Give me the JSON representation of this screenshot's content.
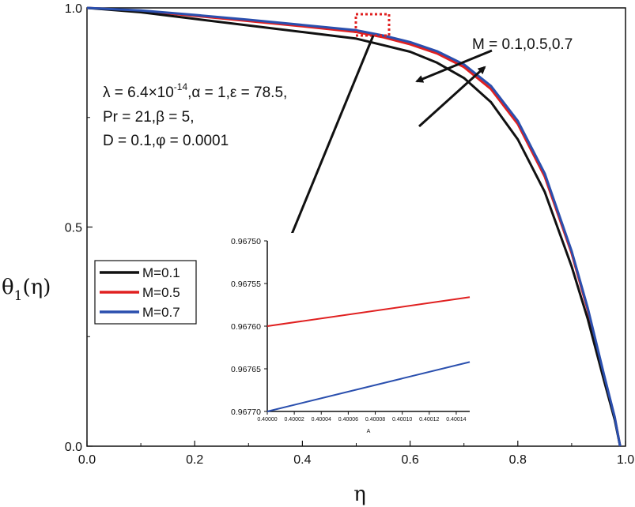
{
  "chart_data": {
    "type": "line",
    "title": "",
    "xlabel": "η",
    "ylabel": "θ",
    "ylabel_sub": "1",
    "ylabel_arg": "(η)",
    "xlim": [
      0.0,
      1.0
    ],
    "ylim": [
      0.0,
      1.0
    ],
    "xticks": [
      "0.0",
      "0.2",
      "0.4",
      "0.6",
      "0.8",
      "1.0"
    ],
    "yticks": [
      "0.0",
      "0.5",
      "1.0"
    ],
    "series": [
      {
        "name": "M=0.1",
        "color": "#111111",
        "x": [
          0,
          0.1,
          0.2,
          0.3,
          0.4,
          0.5,
          0.55,
          0.6,
          0.65,
          0.7,
          0.75,
          0.8,
          0.85,
          0.9,
          0.93,
          0.96,
          0.98,
          0.99
        ],
        "y": [
          1.0,
          0.99,
          0.975,
          0.96,
          0.945,
          0.93,
          0.915,
          0.9,
          0.875,
          0.84,
          0.785,
          0.7,
          0.58,
          0.41,
          0.29,
          0.15,
          0.06,
          0.0
        ]
      },
      {
        "name": "M=0.5",
        "color": "#e02020",
        "x": [
          0,
          0.1,
          0.2,
          0.3,
          0.4,
          0.5,
          0.55,
          0.6,
          0.65,
          0.7,
          0.75,
          0.8,
          0.85,
          0.9,
          0.93,
          0.96,
          0.98,
          0.99
        ],
        "y": [
          1.0,
          0.993,
          0.982,
          0.97,
          0.958,
          0.945,
          0.933,
          0.917,
          0.896,
          0.865,
          0.815,
          0.735,
          0.615,
          0.44,
          0.31,
          0.16,
          0.065,
          0.0
        ]
      },
      {
        "name": "M=0.7",
        "color": "#2a4fae",
        "x": [
          0,
          0.1,
          0.2,
          0.3,
          0.4,
          0.5,
          0.55,
          0.6,
          0.65,
          0.7,
          0.75,
          0.8,
          0.85,
          0.9,
          0.93,
          0.96,
          0.98,
          0.99
        ],
        "y": [
          1.0,
          0.994,
          0.984,
          0.973,
          0.961,
          0.949,
          0.937,
          0.922,
          0.901,
          0.871,
          0.822,
          0.742,
          0.622,
          0.445,
          0.315,
          0.163,
          0.066,
          0.0
        ]
      }
    ],
    "annotations": {
      "params_line1": "λ = 6.4×10",
      "params_line1_exp": "-14",
      "params_line1_rest": ",α = 1,ε = 78.5,",
      "params_line2": "Pr = 21,β = 5,",
      "params_line3": "D = 0.1,φ = 0.0001",
      "m_label": "M = 0.1,0.5,0.7"
    },
    "legend": {
      "position": "left-middle",
      "entries": [
        {
          "label": "M=0.1",
          "color": "#111111"
        },
        {
          "label": "M=0.5",
          "color": "#e02020"
        },
        {
          "label": "M=0.7",
          "color": "#2a4fae"
        }
      ]
    },
    "inset": {
      "xlim": [
        0.4,
        0.40015
      ],
      "ylim": [
        0.9675,
        0.9677
      ],
      "y_inverted": true,
      "xticks": [
        "0.40000",
        "0.40002",
        "0.40004",
        "0.40006",
        "0.40008",
        "0.40010",
        "0.40012",
        "0.40014"
      ],
      "xtick_values": [
        0.4,
        0.40002,
        0.40004,
        0.40006,
        0.40008,
        0.4001,
        0.40012,
        0.40014
      ],
      "yticks": [
        "0.96750",
        "0.96755",
        "0.96760",
        "0.96765",
        "0.96770"
      ],
      "ytick_values": [
        0.9675,
        0.96755,
        0.9676,
        0.96765,
        0.9677
      ],
      "xlabel": "A",
      "series": [
        {
          "name": "M=0.5",
          "color": "#e02020",
          "x": [
            0.4,
            0.40015
          ],
          "y": [
            0.9676,
            0.967566
          ]
        },
        {
          "name": "M=0.7",
          "color": "#2a4fae",
          "x": [
            0.4,
            0.40015
          ],
          "y": [
            0.9677,
            0.967642
          ]
        }
      ]
    }
  }
}
